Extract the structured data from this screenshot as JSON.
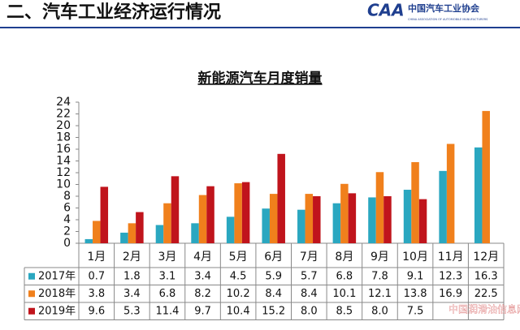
{
  "header": {
    "title": "二、汽车工业经济运行情况",
    "logo_text": "中国汽车工业协会",
    "logo_subtext": "CHINA ASSOCIATION OF AUTOMOBILE MANUFACTURERS"
  },
  "watermark": "中国润滑油信息网",
  "chart_data": {
    "type": "bar",
    "title": "新能源汽车月度销量",
    "categories": [
      "1月",
      "2月",
      "3月",
      "4月",
      "5月",
      "6月",
      "7月",
      "8月",
      "9月",
      "10月",
      "11月",
      "12月"
    ],
    "series": [
      {
        "name": "2017年",
        "color": "#2aa7c0",
        "values": [
          0.7,
          1.8,
          3.1,
          3.4,
          4.5,
          5.9,
          5.7,
          6.8,
          7.8,
          9.1,
          12.3,
          16.3
        ]
      },
      {
        "name": "2018年",
        "color": "#f0801c",
        "values": [
          3.8,
          3.4,
          6.8,
          8.2,
          10.2,
          8.4,
          8.4,
          10.1,
          12.1,
          13.8,
          16.9,
          22.5
        ]
      },
      {
        "name": "2019年",
        "color": "#c0141c",
        "values": [
          9.6,
          5.3,
          11.4,
          9.7,
          10.4,
          15.2,
          8.0,
          8.5,
          8.0,
          7.5,
          null,
          null
        ],
        "value_labels": [
          "9.6",
          "5.3",
          "11.4",
          "9.7",
          "10.4",
          "15.2",
          "8.0",
          "8.5",
          "8.0",
          "7.5",
          null,
          null
        ]
      }
    ],
    "ylim": [
      0,
      24
    ],
    "yticks": [
      0,
      2,
      4,
      6,
      8,
      10,
      12,
      14,
      16,
      18,
      20,
      22,
      24
    ],
    "grid": false
  }
}
